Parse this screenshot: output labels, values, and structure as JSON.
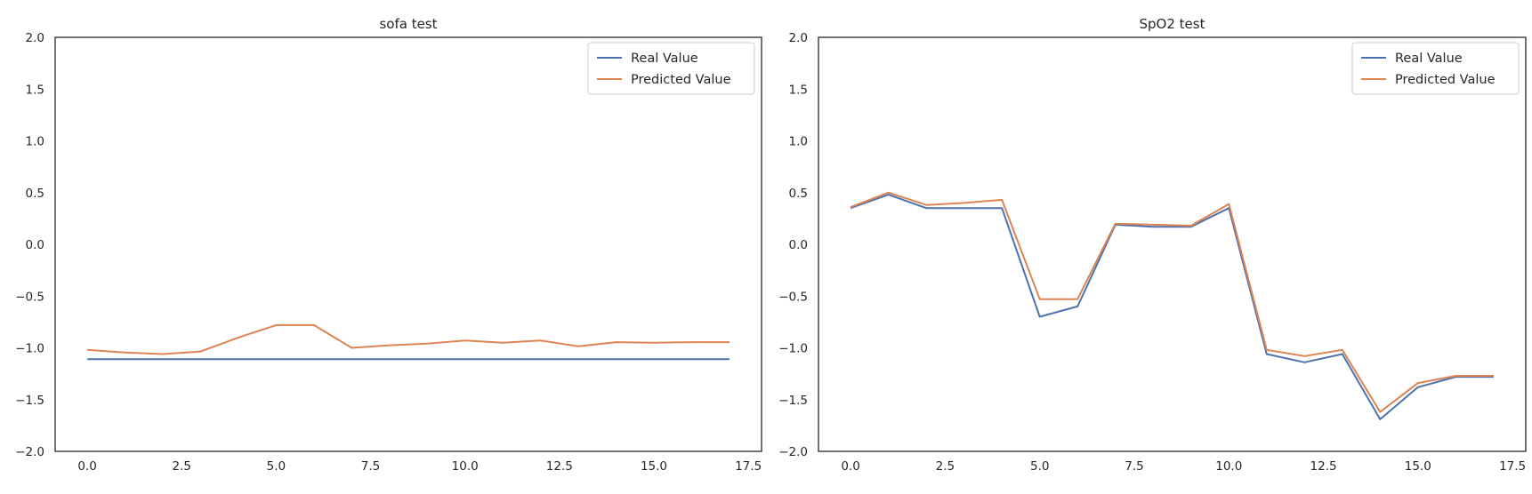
{
  "chart_data": [
    {
      "type": "line",
      "title": "sofa test",
      "xlabel": "",
      "ylabel": "",
      "xlim": [
        -0.85,
        17.85
      ],
      "ylim": [
        -2.0,
        2.0
      ],
      "xticks": [
        0.0,
        2.5,
        5.0,
        7.5,
        10.0,
        12.5,
        15.0,
        17.5
      ],
      "xtick_labels": [
        "0.0",
        "2.5",
        "5.0",
        "7.5",
        "10.0",
        "12.5",
        "15.0",
        "17.5"
      ],
      "yticks": [
        2.0,
        1.5,
        1.0,
        0.5,
        0.0,
        -0.5,
        -1.0,
        -1.5,
        -2.0
      ],
      "ytick_labels": [
        "2.0",
        "1.5",
        "1.0",
        "0.5",
        "0.0",
        "−0.5",
        "−1.0",
        "−1.5",
        "−2.0"
      ],
      "grid": false,
      "legend_position": "top-right",
      "x": [
        0,
        1,
        2,
        3,
        4,
        5,
        6,
        7,
        8,
        9,
        10,
        11,
        12,
        13,
        14,
        15,
        16,
        17
      ],
      "series": [
        {
          "name": "Real Value",
          "color": "#4c72b0",
          "values": [
            -1.11,
            -1.11,
            -1.11,
            -1.11,
            -1.11,
            -1.11,
            -1.11,
            -1.11,
            -1.11,
            -1.11,
            -1.11,
            -1.11,
            -1.11,
            -1.11,
            -1.11,
            -1.11,
            -1.11,
            -1.11
          ]
        },
        {
          "name": "Predicted Value",
          "color": "#dd8452",
          "values": [
            -1.02,
            -1.045,
            -1.06,
            -1.035,
            -0.9,
            -0.78,
            -0.78,
            -1.0,
            -0.975,
            -0.96,
            -0.93,
            -0.95,
            -0.93,
            -0.985,
            -0.945,
            -0.95,
            -0.945,
            -0.945
          ]
        }
      ]
    },
    {
      "type": "line",
      "title": "SpO2 test",
      "xlabel": "",
      "ylabel": "",
      "xlim": [
        -0.85,
        17.85
      ],
      "ylim": [
        -2.0,
        2.0
      ],
      "xticks": [
        0.0,
        2.5,
        5.0,
        7.5,
        10.0,
        12.5,
        15.0,
        17.5
      ],
      "xtick_labels": [
        "0.0",
        "2.5",
        "5.0",
        "7.5",
        "10.0",
        "12.5",
        "15.0",
        "17.5"
      ],
      "yticks": [
        2.0,
        1.5,
        1.0,
        0.5,
        0.0,
        -0.5,
        -1.0,
        -1.5,
        -2.0
      ],
      "ytick_labels": [
        "2.0",
        "1.5",
        "1.0",
        "0.5",
        "0.0",
        "−0.5",
        "−1.0",
        "−1.5",
        "−2.0"
      ],
      "grid": false,
      "legend_position": "top-right",
      "x": [
        0,
        1,
        2,
        3,
        4,
        5,
        6,
        7,
        8,
        9,
        10,
        11,
        12,
        13,
        14,
        15,
        16,
        17
      ],
      "series": [
        {
          "name": "Real Value",
          "color": "#4c72b0",
          "values": [
            0.35,
            0.48,
            0.35,
            0.35,
            0.35,
            -0.7,
            -0.6,
            0.19,
            0.17,
            0.17,
            0.35,
            -1.06,
            -1.14,
            -1.06,
            -1.69,
            -1.38,
            -1.28,
            -1.28
          ]
        },
        {
          "name": "Predicted Value",
          "color": "#dd8452",
          "values": [
            0.36,
            0.5,
            0.38,
            0.4,
            0.43,
            -0.53,
            -0.53,
            0.2,
            0.19,
            0.18,
            0.39,
            -1.02,
            -1.08,
            -1.02,
            -1.62,
            -1.34,
            -1.27,
            -1.27
          ]
        }
      ]
    }
  ]
}
